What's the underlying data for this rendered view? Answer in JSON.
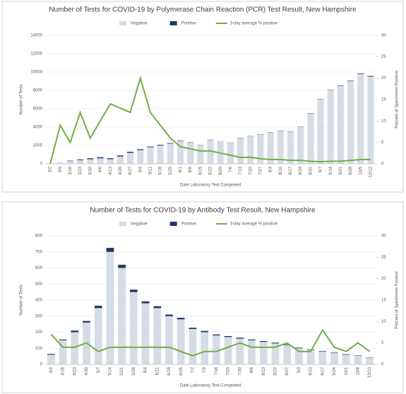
{
  "chart_data": [
    {
      "type": "bar",
      "stacked": true,
      "title": "Number of Tests for COVID-19 by Polymerase Chain Reaction (PCR) Test Result, New Hampshire",
      "x_label": "Date Laboratory Test Completed",
      "y_label": "Number of Tests",
      "y2_label": "Percent of Specimens Positive",
      "categories": [
        "3/2",
        "3/9",
        "3/16",
        "3/23",
        "3/30",
        "4/6",
        "4/13",
        "4/20",
        "4/27",
        "5/4",
        "5/11",
        "5/18",
        "5/25",
        "6/1",
        "6/8",
        "6/15",
        "6/22",
        "6/29",
        "7/6",
        "7/13",
        "7/20",
        "7/27",
        "8/3",
        "8/10",
        "8/17",
        "8/24",
        "8/31",
        "9/7",
        "9/14",
        "9/21",
        "9/28",
        "10/5",
        "10/12"
      ],
      "series": [
        {
          "name": "Negative",
          "color": "#d6dce5",
          "values": [
            50,
            100,
            300,
            400,
            500,
            600,
            500,
            800,
            1200,
            1500,
            1800,
            2000,
            2200,
            2500,
            2300,
            2000,
            2600,
            2400,
            2300,
            2800,
            3000,
            3200,
            3400,
            3600,
            3500,
            4000,
            5500,
            7000,
            8000,
            8500,
            9000,
            9800,
            9500
          ]
        },
        {
          "name": "Positive",
          "color": "#1f3864",
          "values": [
            0,
            10,
            40,
            80,
            100,
            120,
            100,
            110,
            110,
            90,
            80,
            70,
            60,
            40,
            35,
            25,
            25,
            20,
            20,
            25,
            25,
            25,
            30,
            25,
            25,
            30,
            30,
            30,
            40,
            45,
            50,
            60,
            70
          ]
        },
        {
          "name": "3-day average % positive",
          "color": "#70ad47",
          "axis": "y2",
          "values": [
            0,
            9,
            5,
            12,
            6,
            10,
            14,
            13,
            12,
            20,
            12,
            9,
            6,
            4,
            3.5,
            3,
            3,
            2.5,
            2,
            1.5,
            1.5,
            1.2,
            1,
            1,
            0.8,
            0.8,
            0.6,
            0.5,
            0.6,
            0.6,
            0.8,
            1,
            1
          ]
        }
      ],
      "ylim": [
        0,
        14000
      ],
      "yticks": [
        0,
        2000,
        4000,
        6000,
        8000,
        10000,
        12000,
        14000
      ],
      "y2lim": [
        0,
        30
      ],
      "y2ticks": [
        0,
        5,
        10,
        15,
        20,
        25,
        30
      ],
      "legend": "top"
    },
    {
      "type": "bar",
      "stacked": true,
      "title": "Number of Tests for COVID-19 by Antibody Test Result, New Hampshire",
      "x_label": "Date Laboratory Test Completed",
      "y_label": "Number of Tests",
      "y2_label": "Percent of Specimens Positive",
      "categories": [
        "4/9",
        "4/16",
        "4/23",
        "4/30",
        "5/7",
        "5/14",
        "5/21",
        "5/28",
        "6/4",
        "6/11",
        "6/18",
        "6/25",
        "7/2",
        "7/9",
        "7/16",
        "7/23",
        "7/30",
        "8/6",
        "8/13",
        "8/20",
        "8/27",
        "9/3",
        "9/10",
        "9/17",
        "9/24",
        "10/1",
        "10/8",
        "10/13"
      ],
      "series": [
        {
          "name": "Negative",
          "color": "#d6dce5",
          "values": [
            60,
            150,
            200,
            260,
            350,
            700,
            600,
            450,
            380,
            350,
            300,
            280,
            220,
            200,
            180,
            170,
            160,
            150,
            140,
            130,
            120,
            100,
            90,
            80,
            70,
            60,
            55,
            40
          ]
        },
        {
          "name": "Positive",
          "color": "#1f3864",
          "values": [
            5,
            5,
            10,
            10,
            15,
            25,
            20,
            15,
            12,
            12,
            10,
            10,
            8,
            8,
            6,
            6,
            6,
            5,
            5,
            5,
            4,
            4,
            3,
            3,
            3,
            3,
            2,
            2
          ]
        },
        {
          "name": "3-day average % positive",
          "color": "#70ad47",
          "axis": "y2",
          "values": [
            7,
            4,
            4,
            5,
            3,
            4,
            4,
            4,
            4,
            4,
            4,
            3,
            2,
            3,
            3,
            4,
            5,
            4,
            4,
            4,
            5,
            3,
            3,
            8,
            4,
            3,
            5,
            3
          ]
        }
      ],
      "ylim": [
        0,
        800
      ],
      "yticks": [
        0,
        100,
        200,
        300,
        400,
        500,
        600,
        700,
        800
      ],
      "y2lim": [
        0,
        30
      ],
      "y2ticks": [
        0,
        5,
        10,
        15,
        20,
        25,
        30
      ],
      "legend": "top"
    }
  ]
}
